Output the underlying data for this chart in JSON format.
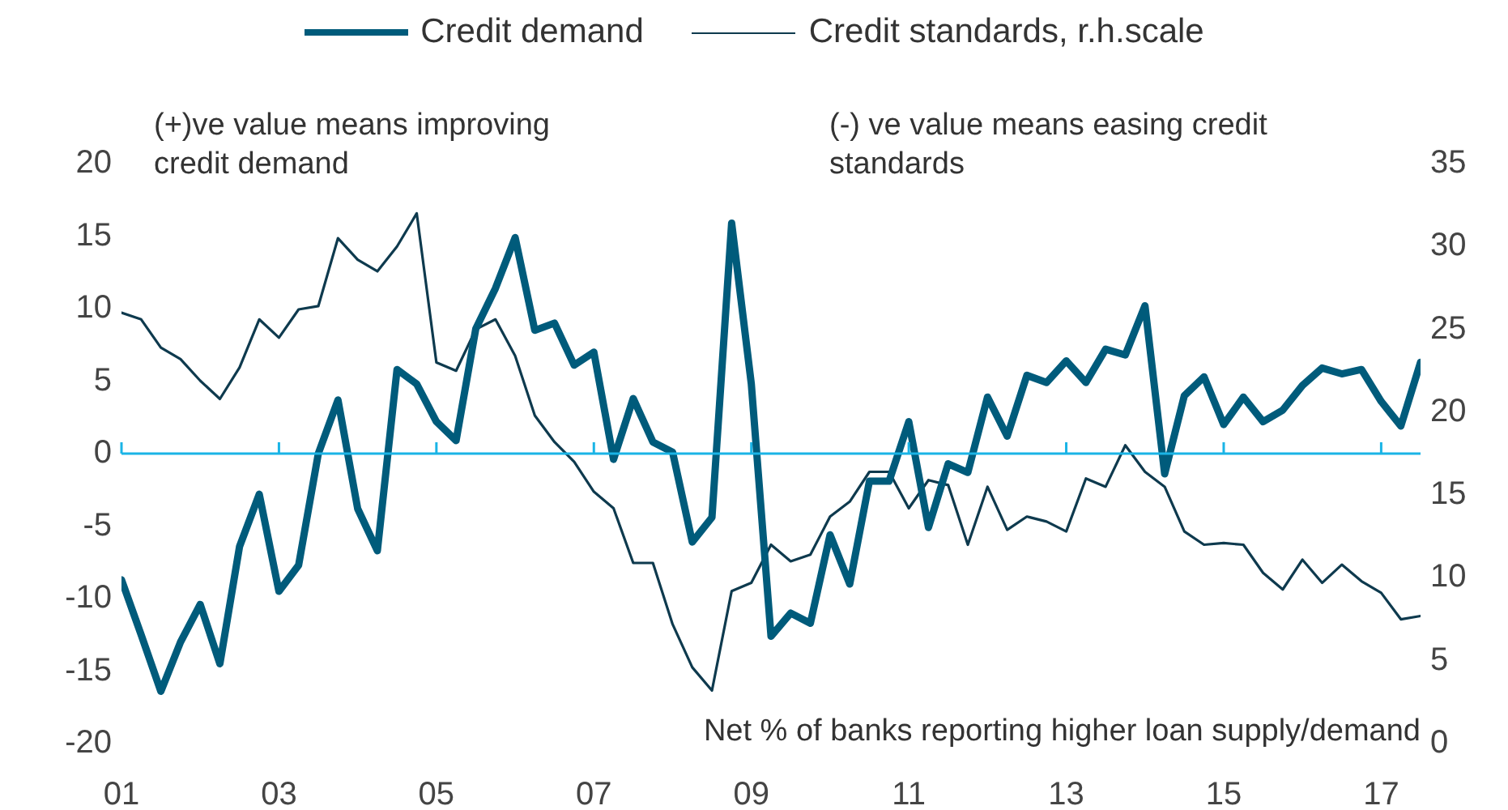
{
  "chart_data": {
    "type": "line",
    "x": [
      2001,
      2001.25,
      2001.5,
      2001.75,
      2002,
      2002.25,
      2002.5,
      2002.75,
      2003,
      2003.25,
      2003.5,
      2003.75,
      2004,
      2004.25,
      2004.5,
      2004.75,
      2005,
      2005.25,
      2005.5,
      2005.75,
      2006,
      2006.25,
      2006.5,
      2006.75,
      2007,
      2007.25,
      2007.5,
      2007.75,
      2008,
      2008.25,
      2008.5,
      2008.75,
      2009,
      2009.25,
      2009.5,
      2009.75,
      2010,
      2010.25,
      2010.5,
      2010.75,
      2011,
      2011.25,
      2011.5,
      2011.75,
      2012,
      2012.25,
      2012.5,
      2012.75,
      2013,
      2013.25,
      2013.5,
      2013.75,
      2014,
      2014.25,
      2014.5,
      2014.75,
      2015,
      2015.25,
      2015.5,
      2015.75,
      2016,
      2016.25,
      2016.5,
      2016.75,
      2017,
      2017.25,
      2017.5
    ],
    "series": [
      {
        "name": "Credit demand",
        "color": "#005b7b",
        "values": [
          -8.7,
          -12.5,
          -16.4,
          -13.0,
          -10.4,
          -14.5,
          -6.4,
          -2.8,
          -9.5,
          -7.7,
          0,
          3.7,
          -3.8,
          -6.7,
          5.8,
          4.8,
          2.2,
          0.9,
          8.6,
          11.4,
          14.9,
          8.5,
          9.0,
          6.1,
          7.0,
          -0.4,
          3.8,
          0.8,
          0.1,
          -6.1,
          -4.4,
          15.9,
          4.8,
          -12.6,
          -11.0,
          -11.7,
          -5.6,
          -9.0,
          -1.9,
          -1.9,
          2.2,
          -5.1,
          -0.7,
          -1.3,
          3.9,
          1.2,
          5.4,
          4.9,
          6.4,
          4.9,
          7.2,
          6.8,
          10.2,
          -1.4,
          4.0,
          5.3,
          2.0,
          3.9,
          2.2,
          3.0,
          4.7,
          5.9,
          5.5,
          5.8,
          3.6,
          1.9,
          6.3
        ]
      },
      {
        "name": "Credit standards, r.h.scale",
        "color": "#0e3a4e",
        "axis": "y2",
        "values": [
          26.0,
          25.6,
          23.9,
          23.2,
          21.9,
          20.8,
          22.7,
          25.6,
          24.5,
          26.2,
          26.4,
          30.5,
          29.2,
          28.5,
          30.0,
          32.0,
          23.0,
          22.5,
          25.0,
          25.6,
          23.4,
          19.8,
          18.2,
          17.0,
          15.2,
          14.2,
          10.9,
          10.9,
          7.2,
          4.6,
          3.2,
          9.2,
          9.7,
          12.0,
          11.0,
          11.4,
          13.7,
          14.6,
          16.4,
          16.4,
          14.2,
          15.9,
          15.6,
          12.0,
          15.5,
          12.9,
          13.7,
          13.4,
          12.8,
          16.0,
          15.5,
          18.0,
          16.4,
          15.5,
          12.8,
          12.0,
          12.1,
          12.0,
          10.3,
          9.3,
          11.1,
          9.7,
          10.8,
          9.8,
          9.1,
          7.5,
          7.7
        ]
      }
    ],
    "xlim": [
      2001,
      2017.5
    ],
    "xticks": [
      {
        "value": 2001,
        "label": "01"
      },
      {
        "value": 2003,
        "label": "03"
      },
      {
        "value": 2005,
        "label": "05"
      },
      {
        "value": 2007,
        "label": "07"
      },
      {
        "value": 2009,
        "label": "09"
      },
      {
        "value": 2011,
        "label": "11"
      },
      {
        "value": 2013,
        "label": "13"
      },
      {
        "value": 2015,
        "label": "15"
      },
      {
        "value": 2017,
        "label": "17"
      }
    ],
    "ylim": [
      -20,
      20
    ],
    "yticks": [
      -20,
      -15,
      -10,
      -5,
      0,
      5,
      10,
      15,
      20
    ],
    "y2lim": [
      0,
      35
    ],
    "y2ticks": [
      0,
      5,
      10,
      15,
      20,
      25,
      30,
      35
    ],
    "ref_lines": [
      {
        "axis": "y",
        "value": 0,
        "color": "#1ab4e6"
      }
    ],
    "annotations": [
      "(+)ve value means improving credit demand",
      "(-) ve value means easing credit standards",
      "Net % of banks reporting higher loan supply/demand"
    ],
    "legend": "top",
    "grid": false,
    "marker": "none",
    "line_style": "solid"
  }
}
